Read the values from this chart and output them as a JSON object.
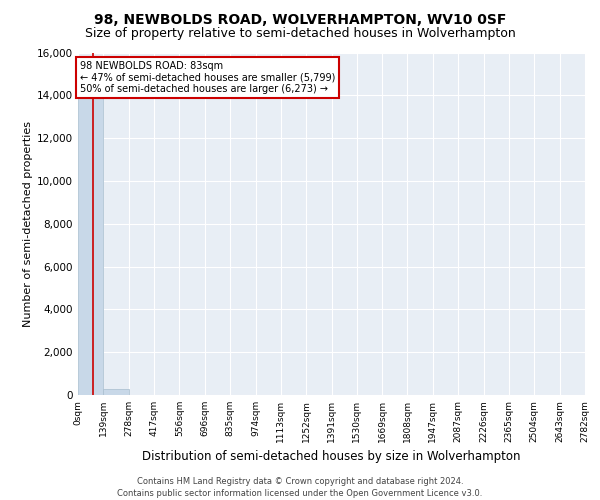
{
  "title": "98, NEWBOLDS ROAD, WOLVERHAMPTON, WV10 0SF",
  "subtitle": "Size of property relative to semi-detached houses in Wolverhampton",
  "xlabel": "Distribution of semi-detached houses by size in Wolverhampton",
  "ylabel": "Number of semi-detached properties",
  "footnote": "Contains HM Land Registry data © Crown copyright and database right 2024.\nContains public sector information licensed under the Open Government Licence v3.0.",
  "bar_edges": [
    0,
    139,
    278,
    417,
    556,
    696,
    835,
    974,
    1113,
    1252,
    1391,
    1530,
    1669,
    1808,
    1947,
    2087,
    2226,
    2365,
    2504,
    2643,
    2782
  ],
  "bar_heights": [
    15000,
    300,
    0,
    0,
    0,
    0,
    0,
    0,
    0,
    0,
    0,
    0,
    0,
    0,
    0,
    0,
    0,
    0,
    0,
    0
  ],
  "bar_color": "#c8d8e8",
  "bar_edgecolor": "#a8bece",
  "property_sqm": 83,
  "property_line_color": "#cc0000",
  "annotation_text": "98 NEWBOLDS ROAD: 83sqm\n← 47% of semi-detached houses are smaller (5,799)\n50% of semi-detached houses are larger (6,273) →",
  "annotation_box_color": "#cc0000",
  "ylim": [
    0,
    16000
  ],
  "yticks": [
    0,
    2000,
    4000,
    6000,
    8000,
    10000,
    12000,
    14000,
    16000
  ],
  "tick_labels": [
    "0sqm",
    "139sqm",
    "278sqm",
    "417sqm",
    "556sqm",
    "696sqm",
    "835sqm",
    "974sqm",
    "1113sqm",
    "1252sqm",
    "1391sqm",
    "1530sqm",
    "1669sqm",
    "1808sqm",
    "1947sqm",
    "2087sqm",
    "2226sqm",
    "2365sqm",
    "2504sqm",
    "2643sqm",
    "2782sqm"
  ],
  "background_color": "#e8eef5",
  "grid_color": "#ffffff",
  "title_fontsize": 10,
  "subtitle_fontsize": 9,
  "ylabel_fontsize": 8,
  "xlabel_fontsize": 8.5,
  "footnote_fontsize": 6,
  "tick_fontsize": 6.5,
  "ytick_fontsize": 7.5
}
